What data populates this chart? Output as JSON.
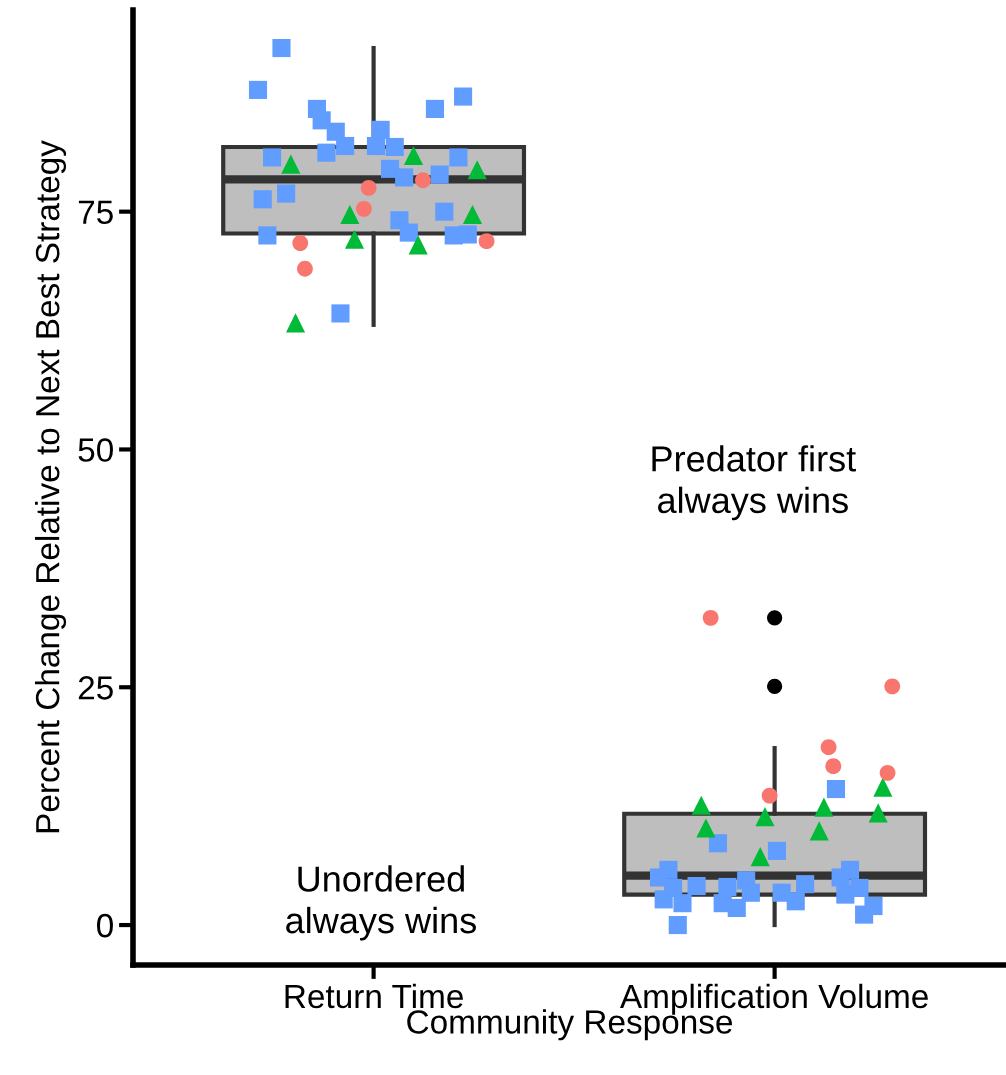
{
  "chart_data": {
    "type": "box",
    "xlabel": "Community Response",
    "ylabel": "Percent Change Relative to Next Best Strategy",
    "categories": [
      "Return Time",
      "Amplification Volume"
    ],
    "boxes": [
      {
        "low": 63.1,
        "q1": 72.7,
        "median": 78.4,
        "q3": 81.8,
        "high": 92.2
      },
      {
        "low": 0.0,
        "q1": 3.2,
        "median": 5.2,
        "q3": 11.7,
        "high": 18.6,
        "outliers": [
          32.3,
          25.1
        ]
      }
    ],
    "ylim": [
      -4.2,
      96.2
    ],
    "yticks": [
      0,
      25,
      50,
      75
    ],
    "grid": false,
    "series": [
      {
        "type": "scatter",
        "marker": "square",
        "color": "#619cff",
        "x": [
          "Return Time",
          "Return Time",
          "Return Time",
          "Return Time",
          "Return Time",
          "Return Time",
          "Return Time",
          "Return Time",
          "Return Time",
          "Return Time",
          "Return Time",
          "Return Time",
          "Return Time",
          "Return Time",
          "Return Time",
          "Return Time",
          "Return Time",
          "Return Time",
          "Return Time",
          "Return Time",
          "Return Time",
          "Return Time",
          "Return Time",
          "Return Time",
          "Return Time",
          "Return Time",
          "Amplification Volume",
          "Amplification Volume",
          "Amplification Volume",
          "Amplification Volume",
          "Amplification Volume",
          "Amplification Volume",
          "Amplification Volume",
          "Amplification Volume",
          "Amplification Volume",
          "Amplification Volume",
          "Amplification Volume",
          "Amplification Volume",
          "Amplification Volume",
          "Amplification Volume",
          "Amplification Volume",
          "Amplification Volume",
          "Amplification Volume",
          "Amplification Volume",
          "Amplification Volume",
          "Amplification Volume",
          "Amplification Volume",
          "Amplification Volume",
          "Amplification Volume",
          "Amplification Volume"
        ],
        "values": [
          85.8,
          81.9,
          85.8,
          87.8,
          78.9,
          83.6,
          84.6,
          76.3,
          75.0,
          81.2,
          72.5,
          79.5,
          80.7,
          72.5,
          81.8,
          83.4,
          80.7,
          74.1,
          64.3,
          92.2,
          87.1,
          78.6,
          81.9,
          76.9,
          72.6,
          72.8,
          14.3,
          7.8,
          8.6,
          5.0,
          5.0,
          3.4,
          2.3,
          2.7,
          3.2,
          4.0,
          5.8,
          5.8,
          3.9,
          2.5,
          1.8,
          0.0,
          3.9,
          2.3,
          1.1,
          4.3,
          4.7,
          3.4,
          2.0,
          4.1
        ]
      },
      {
        "type": "scatter",
        "marker": "triangle",
        "color": "#00ba38",
        "x": [
          "Return Time",
          "Return Time",
          "Return Time",
          "Return Time",
          "Return Time",
          "Return Time",
          "Return Time",
          "Return Time",
          "Amplification Volume",
          "Amplification Volume",
          "Amplification Volume",
          "Amplification Volume",
          "Amplification Volume",
          "Amplification Volume",
          "Amplification Volume",
          "Amplification Volume"
        ],
        "values": [
          74.7,
          80.0,
          74.7,
          80.9,
          72.1,
          63.3,
          79.4,
          71.5,
          11.8,
          9.9,
          7.2,
          12.6,
          14.5,
          12.4,
          11.4,
          10.2
        ]
      },
      {
        "type": "scatter",
        "marker": "circle",
        "color": "#f8766d",
        "x": [
          "Return Time",
          "Return Time",
          "Return Time",
          "Return Time",
          "Return Time",
          "Return Time",
          "Amplification Volume",
          "Amplification Volume",
          "Amplification Volume",
          "Amplification Volume",
          "Amplification Volume",
          "Amplification Volume"
        ],
        "values": [
          71.7,
          78.3,
          75.3,
          69.0,
          71.9,
          77.5,
          16.0,
          18.7,
          13.6,
          32.3,
          25.1,
          16.7
        ]
      }
    ],
    "annotations": [
      "Predator first\nalways wins",
      "Unordered\nalways wins"
    ]
  }
}
